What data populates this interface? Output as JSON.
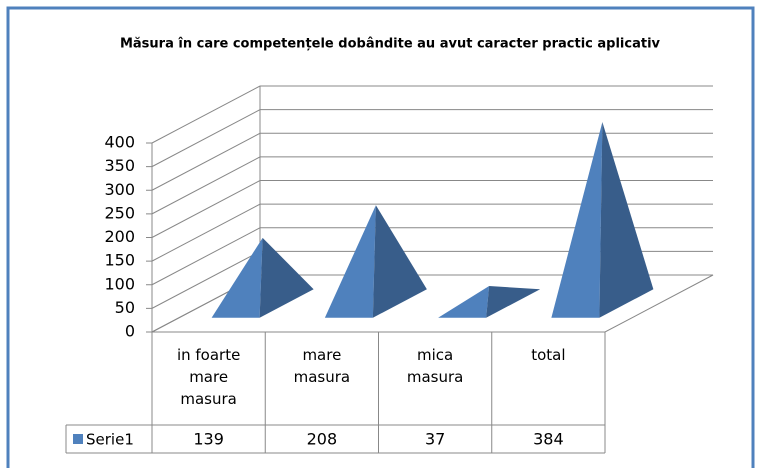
{
  "chart_data": {
    "type": "pyramid",
    "title": "Măsura în care competențele dobândite au avut caracter practic aplicativ",
    "categories": [
      "in foarte mare masura",
      "mare masura",
      "mica masura",
      "total"
    ],
    "series": [
      {
        "name": "Serie1",
        "color": "#4f81bd",
        "values": [
          139,
          208,
          37,
          384
        ]
      }
    ],
    "ylim": [
      0,
      400
    ],
    "yticks": [
      0,
      50,
      100,
      150,
      200,
      250,
      300,
      350,
      400
    ],
    "grid": true
  }
}
